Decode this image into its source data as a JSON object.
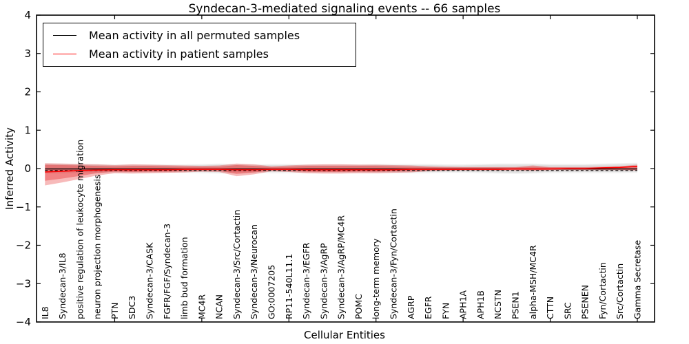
{
  "figure": {
    "title": "Syndecan-3-mediated signaling events -- 66 samples",
    "xlabel": "Cellular Entities",
    "ylabel": "Inferred Activity"
  },
  "legend": {
    "items": [
      {
        "label": "Mean activity in all permuted samples",
        "color": "#000000"
      },
      {
        "label": "Mean activity in patient samples",
        "color": "#ff0000"
      }
    ]
  },
  "chart_data": {
    "type": "area",
    "title": "Syndecan-3-mediated signaling events -- 66 samples",
    "xlabel": "Cellular Entities",
    "ylabel": "Inferred Activity",
    "ylim": [
      -4,
      4
    ],
    "ytick_values": [
      4,
      3,
      2,
      1,
      0,
      -1,
      -2,
      -3,
      -4
    ],
    "ytick_labels": [
      "4",
      "3",
      "2",
      "1",
      "0",
      "−1",
      "−2",
      "−3",
      "−4"
    ],
    "xtick_indices": [
      4,
      9,
      14,
      19,
      24,
      29,
      34
    ],
    "legend_position": "upper left",
    "grid": false,
    "categories": [
      "IL8",
      "Syndecan-3/IL8",
      "positive regulation of leukocyte migration",
      "neuron projection morphogenesis",
      "PTN",
      "SDC3",
      "Syndecan-3/CASK",
      "FGFR/FGF/Syndecan-3",
      "limb bud formation",
      "MC4R",
      "NCAN",
      "Syndecan-3/Src/Cortactin",
      "Syndecan-3/Neurocan",
      "GO:0007205",
      "RP11-540L11.1",
      "Syndecan-3/EGFR",
      "Syndecan-3/AgRP",
      "Syndecan-3/AgRP/MC4R",
      "POMC",
      "long-term memory",
      "Syndecan-3/Fyn/Cortactin",
      "AGRP",
      "EGFR",
      "FYN",
      "APH1A",
      "APH1B",
      "NCSTN",
      "PSEN1",
      "alpha-MSH/MC4R",
      "CTTN",
      "SRC",
      "PSENEN",
      "Fyn/Cortactin",
      "Src/Cortactin",
      "Gamma Secretase"
    ],
    "bands": [
      {
        "name": "permuted-band-outer",
        "color": "#aaaaaa",
        "opacity": 0.18,
        "top": [
          0.13,
          0.13,
          0.12,
          0.12,
          0.11,
          0.11,
          0.11,
          0.11,
          0.11,
          0.12,
          0.13,
          0.12,
          0.11,
          0.12,
          0.12,
          0.11,
          0.11,
          0.11,
          0.11,
          0.12,
          0.12,
          0.12,
          0.12,
          0.11,
          0.11,
          0.12,
          0.13,
          0.13,
          0.13,
          0.12,
          0.12,
          0.12,
          0.13,
          0.14,
          0.15
        ],
        "bottom": [
          -0.13,
          -0.13,
          -0.12,
          -0.12,
          -0.11,
          -0.11,
          -0.11,
          -0.11,
          -0.11,
          -0.12,
          -0.13,
          -0.12,
          -0.11,
          -0.12,
          -0.12,
          -0.11,
          -0.11,
          -0.11,
          -0.11,
          -0.12,
          -0.12,
          -0.12,
          -0.12,
          -0.11,
          -0.11,
          -0.12,
          -0.13,
          -0.14,
          -0.13,
          -0.12,
          -0.12,
          -0.12,
          -0.12,
          -0.12,
          -0.11
        ]
      },
      {
        "name": "permuted-band-inner",
        "color": "#aaaaaa",
        "opacity": 0.25,
        "top": [
          0.1,
          0.1,
          0.09,
          0.09,
          0.08,
          0.08,
          0.08,
          0.08,
          0.08,
          0.09,
          0.1,
          0.09,
          0.08,
          0.09,
          0.09,
          0.08,
          0.08,
          0.08,
          0.08,
          0.09,
          0.09,
          0.09,
          0.09,
          0.08,
          0.08,
          0.09,
          0.1,
          0.1,
          0.1,
          0.09,
          0.09,
          0.09,
          0.1,
          0.11,
          0.12
        ],
        "bottom": [
          -0.1,
          -0.1,
          -0.09,
          -0.09,
          -0.08,
          -0.08,
          -0.08,
          -0.08,
          -0.08,
          -0.09,
          -0.1,
          -0.09,
          -0.08,
          -0.09,
          -0.09,
          -0.08,
          -0.08,
          -0.08,
          -0.08,
          -0.09,
          -0.09,
          -0.09,
          -0.09,
          -0.08,
          -0.08,
          -0.09,
          -0.1,
          -0.11,
          -0.1,
          -0.09,
          -0.09,
          -0.09,
          -0.09,
          -0.09,
          -0.08
        ]
      },
      {
        "name": "patient-band-outer",
        "color": "#e41a1c",
        "opacity": 0.3,
        "top": [
          0.14,
          0.13,
          0.12,
          0.11,
          0.09,
          0.11,
          0.1,
          0.09,
          0.08,
          0.07,
          0.08,
          0.13,
          0.11,
          0.06,
          0.08,
          0.1,
          0.11,
          0.11,
          0.1,
          0.1,
          0.09,
          0.08,
          0.06,
          0.05,
          0.04,
          0.04,
          0.04,
          0.04,
          0.08,
          0.04,
          0.04,
          0.04,
          0.05,
          0.06,
          0.1
        ],
        "bottom": [
          -0.44,
          -0.36,
          -0.27,
          -0.18,
          -0.12,
          -0.13,
          -0.12,
          -0.11,
          -0.1,
          -0.08,
          -0.09,
          -0.2,
          -0.15,
          -0.07,
          -0.09,
          -0.12,
          -0.13,
          -0.13,
          -0.12,
          -0.12,
          -0.11,
          -0.1,
          -0.07,
          -0.06,
          -0.05,
          -0.05,
          -0.05,
          -0.05,
          -0.06,
          -0.04,
          -0.04,
          -0.04,
          -0.04,
          -0.04,
          -0.05
        ]
      },
      {
        "name": "patient-band-inner",
        "color": "#e41a1c",
        "opacity": 0.35,
        "top": [
          0.1,
          0.09,
          0.08,
          0.07,
          0.06,
          0.07,
          0.07,
          0.06,
          0.05,
          0.05,
          0.05,
          0.09,
          0.07,
          0.04,
          0.05,
          0.07,
          0.07,
          0.07,
          0.07,
          0.07,
          0.06,
          0.05,
          0.04,
          0.03,
          0.03,
          0.03,
          0.03,
          0.03,
          0.05,
          0.03,
          0.03,
          0.03,
          0.03,
          0.04,
          0.07
        ],
        "bottom": [
          -0.32,
          -0.26,
          -0.19,
          -0.12,
          -0.08,
          -0.09,
          -0.08,
          -0.08,
          -0.07,
          -0.05,
          -0.06,
          -0.14,
          -0.1,
          -0.05,
          -0.06,
          -0.08,
          -0.09,
          -0.09,
          -0.08,
          -0.08,
          -0.07,
          -0.07,
          -0.05,
          -0.04,
          -0.03,
          -0.03,
          -0.03,
          -0.03,
          -0.04,
          -0.03,
          -0.03,
          -0.03,
          -0.03,
          -0.03,
          -0.04
        ]
      }
    ],
    "zero_line": {
      "name": "zero-dashed-line",
      "color": "#000000",
      "style": "dashed",
      "value": -0.05
    },
    "series": [
      {
        "name": "Mean activity in all permuted samples",
        "color": "#000000",
        "style": "solid",
        "values": -0.01
      },
      {
        "name": "Mean activity in patient samples",
        "color": "#ff0000",
        "style": "solid",
        "values": [
          -0.09,
          -0.07,
          -0.05,
          -0.04,
          -0.03,
          -0.03,
          -0.03,
          -0.03,
          -0.02,
          -0.02,
          -0.02,
          -0.03,
          -0.03,
          -0.02,
          -0.02,
          -0.03,
          -0.03,
          -0.03,
          -0.03,
          -0.03,
          -0.03,
          -0.02,
          -0.02,
          -0.02,
          -0.02,
          -0.02,
          -0.02,
          -0.01,
          -0.01,
          -0.01,
          0.0,
          0.0,
          0.02,
          0.03,
          0.06
        ]
      }
    ]
  }
}
